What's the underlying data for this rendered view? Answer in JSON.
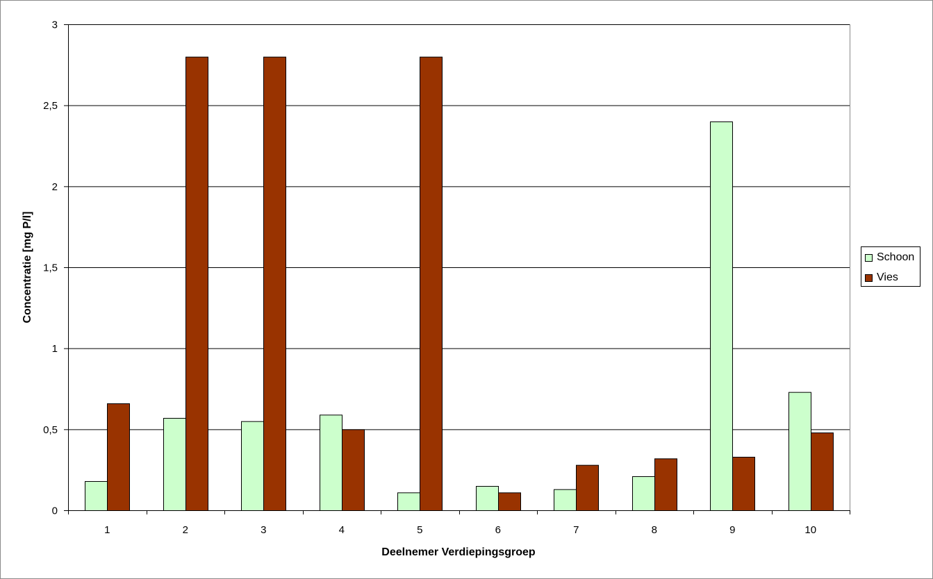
{
  "colors": {
    "schoon": "#ccffcc",
    "vies": "#993300",
    "outline": "#000000",
    "gridline": "#000000",
    "frame": "#8a8a8a"
  },
  "legend": {
    "items": [
      {
        "label": "Schoon",
        "color": "#ccffcc"
      },
      {
        "label": "Vies",
        "color": "#993300"
      }
    ],
    "placement": "right"
  },
  "chart_data": {
    "type": "bar",
    "title": "",
    "xlabel": "Deelnemer Verdiepingsgroep",
    "ylabel": "Concentratie [mg P/l]",
    "categories": [
      "1",
      "2",
      "3",
      "4",
      "5",
      "6",
      "7",
      "8",
      "9",
      "10"
    ],
    "series": [
      {
        "name": "Schoon",
        "values": [
          0.18,
          0.57,
          0.55,
          0.59,
          0.11,
          0.15,
          0.13,
          0.21,
          2.4,
          0.73
        ]
      },
      {
        "name": "Vies",
        "values": [
          0.66,
          2.8,
          2.8,
          0.5,
          2.8,
          0.11,
          0.28,
          0.32,
          0.33,
          0.48
        ]
      }
    ],
    "ylim": [
      0,
      3
    ],
    "yticks": [
      "0",
      "0,5",
      "1",
      "1,5",
      "2",
      "2,5",
      "3"
    ],
    "ytick_values": [
      0,
      0.5,
      1,
      1.5,
      2,
      2.5,
      3
    ],
    "grid": true,
    "legend_placement": "right"
  }
}
